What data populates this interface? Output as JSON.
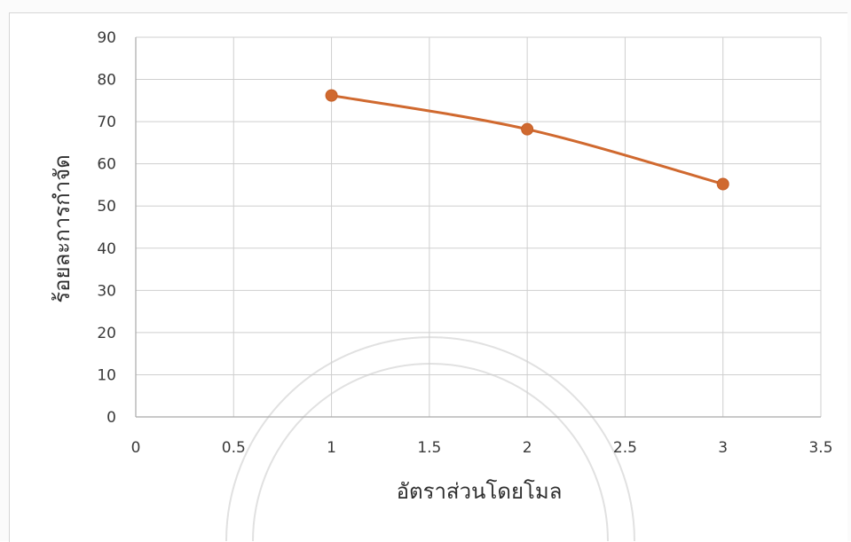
{
  "chart_data": {
    "type": "line",
    "title": "",
    "xlabel": "อัตราส่วนโดยโมล",
    "ylabel": "ร้อยละการกำจัด",
    "xlim": [
      0,
      3.5
    ],
    "ylim": [
      0,
      90
    ],
    "x_ticks": [
      "0",
      "0.5",
      "1",
      "1.5",
      "2",
      "2.5",
      "3",
      "3.5"
    ],
    "y_ticks": [
      "0",
      "10",
      "20",
      "30",
      "40",
      "50",
      "60",
      "70",
      "80",
      "90"
    ],
    "grid": true,
    "legend": "none",
    "series": [
      {
        "color": "#d0692f",
        "marker": "circle",
        "smooth": true,
        "x": [
          1,
          2,
          3
        ],
        "y": [
          76.2,
          68.2,
          55.2
        ]
      }
    ]
  }
}
